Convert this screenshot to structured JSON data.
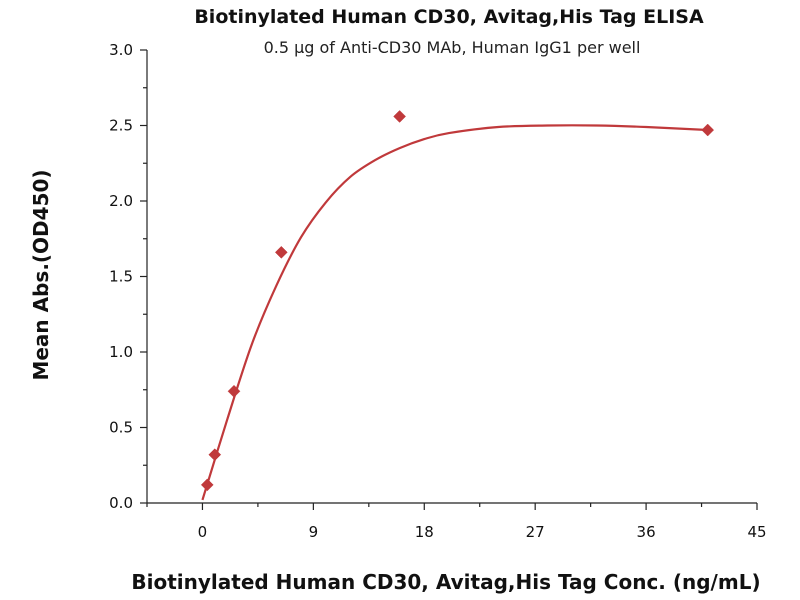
{
  "chart_data": {
    "type": "scatter",
    "title": "Biotinylated Human CD30, Avitag,His Tag ELISA",
    "subtitle": "0.5 μg of Anti-CD30 MAb, Human IgG1 per well",
    "xlabel": "Biotinylated Human CD30, Avitag,His Tag Conc. (ng/mL)",
    "ylabel": "Mean Abs.(OD450)",
    "xlim": [
      -4.5,
      45
    ],
    "ylim": [
      0,
      3.0
    ],
    "xticks": [
      0,
      9,
      18,
      27,
      36,
      45
    ],
    "xtick_labels": [
      "0",
      "9",
      "18",
      "27",
      "36",
      "45"
    ],
    "yticks": [
      0.0,
      0.5,
      1.0,
      1.5,
      2.0,
      2.5,
      3.0
    ],
    "ytick_labels": [
      "0.0",
      "0.5",
      "1.0",
      "1.5",
      "2.0",
      "2.5",
      "3.0"
    ],
    "grid": false,
    "legend": false,
    "colors": {
      "series": "#c0393b",
      "axis": "#222222"
    },
    "series": [
      {
        "marker": "diamond",
        "x": [
          0.39,
          1.0,
          2.56,
          6.4,
          16.0,
          41.0
        ],
        "y": [
          0.12,
          0.32,
          0.74,
          1.66,
          2.56,
          2.47
        ]
      }
    ],
    "fit_curve": {
      "type": "smooth fit",
      "x": [
        0.0,
        2.0,
        4.0,
        6.0,
        8.0,
        10.0,
        12.0,
        14.0,
        16.0,
        18.0,
        20.0,
        24.0,
        28.0,
        32.0,
        36.0,
        41.0
      ],
      "y": [
        0.02,
        0.55,
        1.05,
        1.44,
        1.76,
        1.99,
        2.16,
        2.27,
        2.35,
        2.41,
        2.45,
        2.49,
        2.5,
        2.5,
        2.49,
        2.47
      ]
    }
  }
}
